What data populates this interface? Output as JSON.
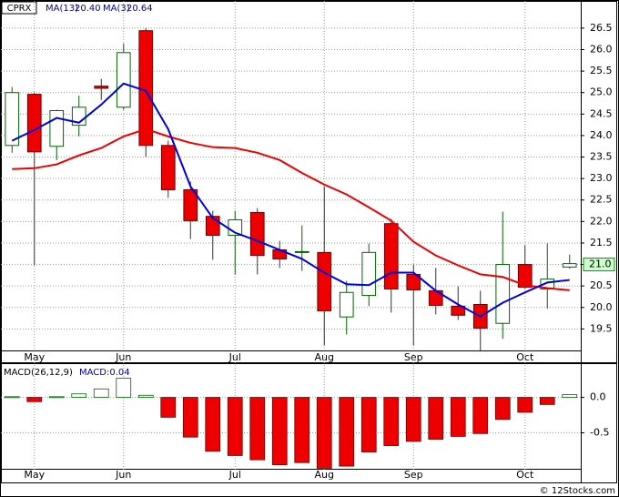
{
  "chart_data": [
    {
      "type": "candlestick",
      "ticker": "CPRX",
      "categories": [
        null,
        "May",
        null,
        null,
        null,
        "Jun",
        null,
        null,
        null,
        null,
        "Jul",
        null,
        null,
        null,
        "Aug",
        null,
        null,
        null,
        "Sep",
        null,
        null,
        null,
        null,
        "Oct",
        null,
        null
      ],
      "open": [
        23.77,
        24.96,
        23.75,
        24.24,
        25.15,
        24.66,
        26.44,
        23.77,
        22.74,
        22.12,
        21.68,
        22.21,
        21.34,
        21.28,
        21.28,
        19.78,
        20.28,
        21.95,
        20.77,
        20.39,
        20.03,
        20.07,
        19.63,
        21.0,
        20.43,
        20.94
      ],
      "high": [
        25.13,
        25.0,
        24.6,
        24.93,
        25.32,
        26.14,
        26.5,
        23.88,
        22.93,
        22.25,
        22.25,
        22.31,
        21.55,
        21.91,
        22.82,
        20.62,
        21.49,
        22.06,
        21.0,
        20.92,
        20.49,
        20.39,
        22.23,
        21.45,
        21.49,
        21.23
      ],
      "low": [
        23.6,
        20.98,
        23.43,
        23.98,
        24.83,
        24.6,
        23.5,
        22.55,
        21.59,
        21.11,
        20.77,
        20.77,
        20.92,
        20.85,
        19.12,
        19.37,
        20.03,
        19.88,
        19.12,
        19.84,
        19.71,
        19.0,
        19.27,
        20.43,
        19.97,
        20.9
      ],
      "close": [
        25.0,
        23.62,
        24.58,
        24.66,
        25.1,
        25.93,
        23.77,
        22.74,
        22.02,
        21.68,
        22.04,
        21.21,
        21.13,
        21.3,
        19.92,
        20.35,
        21.28,
        20.43,
        20.41,
        20.05,
        19.82,
        19.52,
        21.0,
        20.47,
        20.66,
        21.02
      ],
      "up_color": "#006600",
      "down_color": "#ee0000",
      "lines": [
        {
          "name": "MA(13)",
          "color": "#ee0000",
          "last_value_label": "20.40",
          "values": [
            23.22,
            23.24,
            23.33,
            23.54,
            23.71,
            23.98,
            24.15,
            23.98,
            23.83,
            23.73,
            23.71,
            23.6,
            23.43,
            23.13,
            22.86,
            22.63,
            22.33,
            22.02,
            21.53,
            21.21,
            20.98,
            20.77,
            20.71,
            20.52,
            20.45,
            20.4
          ]
        },
        {
          "name": "MA(3)",
          "color": "#0000dd",
          "last_value_label": "20.64",
          "values": [
            23.88,
            24.13,
            24.41,
            24.3,
            24.72,
            25.21,
            25.04,
            24.15,
            22.82,
            22.08,
            21.74,
            21.55,
            21.34,
            21.13,
            20.81,
            20.54,
            20.52,
            20.81,
            20.81,
            20.39,
            20.07,
            19.79,
            20.11,
            20.35,
            20.58,
            20.64
          ]
        }
      ],
      "price_marker": {
        "value": 21.0,
        "label": "21.0"
      },
      "ylim": [
        19.0,
        26.9
      ],
      "yticks": [
        19.5,
        {
          "value": 20,
          "label": "20.0"
        },
        20.5,
        {
          "value": 21,
          "label": "21.0"
        },
        21.5,
        {
          "value": 22,
          "label": "22.0"
        },
        22.5,
        {
          "value": 23,
          "label": "23.0"
        },
        23.5,
        {
          "value": 24,
          "label": "24.0"
        },
        24.5,
        {
          "value": 25,
          "label": "25.0"
        },
        25.5,
        {
          "value": 26,
          "label": "26.0"
        },
        26.5
      ],
      "grid": true
    },
    {
      "type": "bar",
      "title": "MACD(26,12,9)",
      "value_title": "MACD:0.04",
      "categories": [
        null,
        "May",
        null,
        null,
        null,
        "Jun",
        null,
        null,
        null,
        null,
        "Jul",
        null,
        null,
        null,
        "Aug",
        null,
        null,
        null,
        "Sep",
        null,
        null,
        null,
        null,
        "Oct",
        null,
        null
      ],
      "values": [
        0.01,
        -0.06,
        0.01,
        0.05,
        0.12,
        0.27,
        0.03,
        -0.28,
        -0.56,
        -0.76,
        -0.82,
        -0.88,
        -0.95,
        -0.92,
        -1.0,
        -0.97,
        -0.77,
        -0.68,
        -0.62,
        -0.59,
        -0.55,
        -0.51,
        -0.31,
        -0.21,
        -0.1,
        0.04
      ],
      "up_color": "#006600",
      "down_color": "#ee0000",
      "ylim": [
        -1.02,
        0.47
      ],
      "yticks": [
        {
          "value": -0.5,
          "label": "-0.5"
        },
        {
          "value": 0,
          "label": "0.0"
        }
      ],
      "grid": true
    }
  ],
  "copyright": "© 12Stocks.com"
}
